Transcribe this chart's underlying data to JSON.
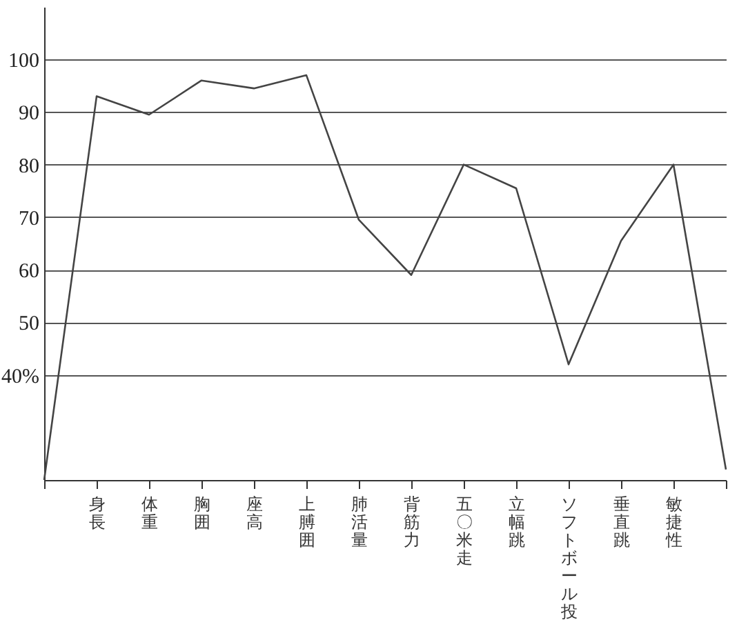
{
  "chart_data": {
    "type": "line",
    "categories": [
      null,
      "身長",
      "体重",
      "胸囲",
      "座高",
      "上膊囲",
      "肺活量",
      "背筋力",
      "五〇米走",
      "立幅跳",
      "ソフトボール投",
      "垂直跳",
      "敏捷性",
      null
    ],
    "series": [
      {
        "color": "#444444",
        "values": [
          20,
          93,
          89.5,
          96,
          94.5,
          97,
          69.5,
          59,
          80,
          75.5,
          42,
          65.5,
          80,
          22
        ]
      }
    ],
    "ylim": [
      20,
      110
    ],
    "yticks": [
      {
        "value": 40,
        "label": "40%"
      },
      50,
      60,
      70,
      80,
      90,
      100
    ],
    "grid": "y",
    "marker": "none",
    "line_style": "solid"
  }
}
